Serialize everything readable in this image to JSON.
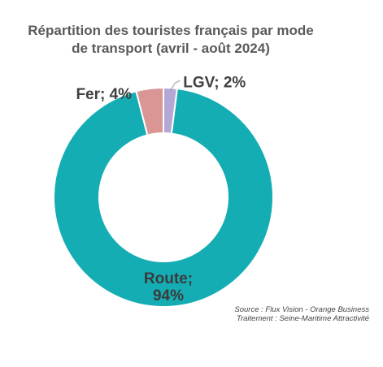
{
  "chart_data": {
    "type": "pie",
    "variant": "donut",
    "title": "Répartition des touristes français par mode de transport (avril - août 2024)",
    "title_lines": [
      "Répartition des touristes français par mode",
      "de transport (avril - août 2024)"
    ],
    "slices": [
      {
        "name": "LGV",
        "value": 2,
        "label": "LGV; 2%",
        "color": "#b4a7d6"
      },
      {
        "name": "Route",
        "value": 94,
        "label_line1": "Route;",
        "label_line2": "94%",
        "color": "#14adb4"
      },
      {
        "name": "Fer",
        "value": 4,
        "label": "Fer; 4%",
        "color": "#d99694"
      }
    ],
    "legend": "none",
    "source_lines": [
      "Source : Flux Vision - Orange Business",
      "Traitement : Seine-Maritime Attractivité"
    ]
  }
}
